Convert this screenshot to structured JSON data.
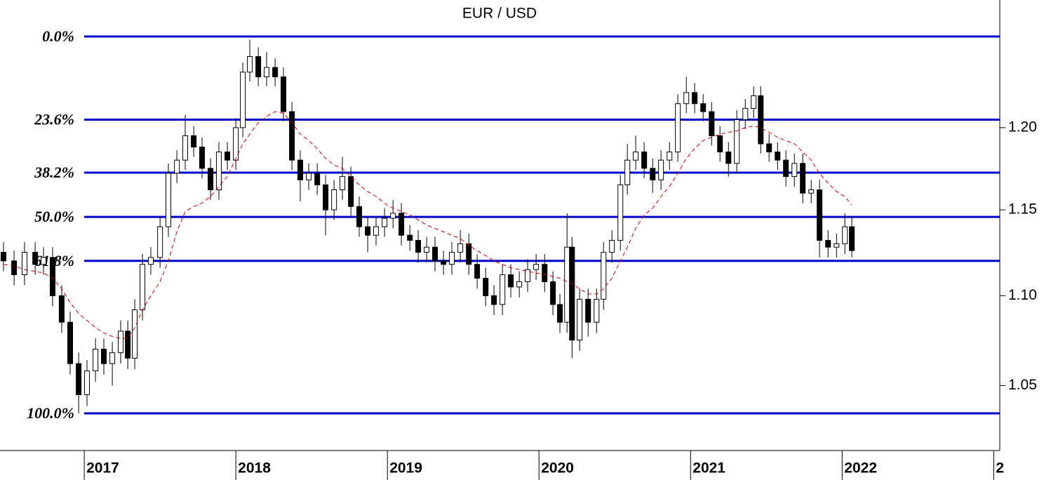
{
  "chart_data": {
    "type": "candlestick",
    "title": "EUR / USD",
    "log_scale": true,
    "ylim": [
      1.016,
      1.282
    ],
    "yticks": [
      1.05,
      {
        "value": 1.1,
        "label": "1.10"
      },
      1.15,
      {
        "value": 1.2,
        "label": "1.20"
      }
    ],
    "xlim": [
      2016.444,
      2023.04
    ],
    "xticks": [
      2017,
      2018,
      2019,
      2020,
      2021,
      2022,
      {
        "value": 2023,
        "label": "2"
      }
    ],
    "up_color": "#ffffff",
    "down_color": "#000000",
    "fib_color": "#0000cc",
    "fib_levels": [
      {
        "label": "0.0%",
        "value": 1.258
      },
      {
        "label": "23.6%",
        "value": 1.205
      },
      {
        "label": "38.2%",
        "value": 1.1724
      },
      {
        "label": "50.0%",
        "value": 1.1458
      },
      {
        "label": "61.8%",
        "value": 1.12
      },
      {
        "label": "100.0%",
        "value": 1.035
      }
    ],
    "x": [
      2016.467,
      2016.537,
      2016.606,
      2016.676,
      2016.731,
      2016.791,
      2016.851,
      2016.907,
      2016.963,
      2017.018,
      2017.074,
      2017.129,
      2017.185,
      2017.24,
      2017.287,
      2017.333,
      2017.384,
      2017.439,
      2017.5,
      2017.555,
      2017.611,
      2017.666,
      2017.722,
      2017.777,
      2017.833,
      2017.888,
      2017.944,
      2018.0,
      2018.046,
      2018.092,
      2018.148,
      2018.203,
      2018.259,
      2018.314,
      2018.37,
      2018.425,
      2018.481,
      2018.537,
      2018.592,
      2018.648,
      2018.703,
      2018.759,
      2018.814,
      2018.87,
      2018.925,
      2018.981,
      2019.037,
      2019.092,
      2019.148,
      2019.203,
      2019.259,
      2019.314,
      2019.37,
      2019.425,
      2019.481,
      2019.537,
      2019.592,
      2019.648,
      2019.703,
      2019.759,
      2019.814,
      2019.87,
      2019.925,
      2019.981,
      2020.037,
      2020.092,
      2020.138,
      2020.185,
      2020.218,
      2020.268,
      2020.324,
      2020.38,
      2020.426,
      2020.481,
      2020.537,
      2020.583,
      2020.638,
      2020.694,
      2020.75,
      2020.805,
      2020.861,
      2020.916,
      2020.972,
      2021.027,
      2021.083,
      2021.139,
      2021.194,
      2021.25,
      2021.305,
      2021.361,
      2021.416,
      2021.463,
      2021.518,
      2021.574,
      2021.629,
      2021.685,
      2021.74,
      2021.796,
      2021.851,
      2021.907,
      2021.963,
      2022.018,
      2022.064
    ],
    "open": [
      1.125,
      1.12,
      1.112,
      1.125,
      1.118,
      1.122,
      1.1,
      1.085,
      1.062,
      1.045,
      1.058,
      1.07,
      1.062,
      1.068,
      1.08,
      1.065,
      1.092,
      1.118,
      1.122,
      1.14,
      1.172,
      1.18,
      1.195,
      1.188,
      1.175,
      1.162,
      1.185,
      1.18,
      1.2,
      1.235,
      1.245,
      1.232,
      1.238,
      1.232,
      1.21,
      1.18,
      1.168,
      1.172,
      1.165,
      1.15,
      1.162,
      1.17,
      1.152,
      1.14,
      1.135,
      1.14,
      1.145,
      1.148,
      1.135,
      1.132,
      1.125,
      1.128,
      1.12,
      1.118,
      1.125,
      1.13,
      1.118,
      1.11,
      1.1,
      1.095,
      1.112,
      1.105,
      1.108,
      1.115,
      1.118,
      1.108,
      1.095,
      1.085,
      1.128,
      1.075,
      1.098,
      1.085,
      1.098,
      1.125,
      1.132,
      1.165,
      1.18,
      1.185,
      1.175,
      1.168,
      1.18,
      1.185,
      1.215,
      1.222,
      1.215,
      1.21,
      1.195,
      1.185,
      1.178,
      1.205,
      1.212,
      1.22,
      1.19,
      1.185,
      1.18,
      1.17,
      1.178,
      1.16,
      1.162,
      1.132,
      1.128,
      1.13,
      1.14
    ],
    "high": [
      1.131,
      1.126,
      1.131,
      1.131,
      1.128,
      1.128,
      1.106,
      1.091,
      1.068,
      1.064,
      1.076,
      1.076,
      1.074,
      1.086,
      1.086,
      1.098,
      1.124,
      1.128,
      1.146,
      1.178,
      1.186,
      1.208,
      1.201,
      1.194,
      1.181,
      1.191,
      1.191,
      1.206,
      1.241,
      1.256,
      1.251,
      1.248,
      1.244,
      1.238,
      1.216,
      1.186,
      1.178,
      1.178,
      1.171,
      1.168,
      1.182,
      1.176,
      1.158,
      1.146,
      1.146,
      1.151,
      1.156,
      1.154,
      1.141,
      1.138,
      1.134,
      1.134,
      1.126,
      1.131,
      1.138,
      1.136,
      1.124,
      1.116,
      1.106,
      1.118,
      1.118,
      1.114,
      1.121,
      1.124,
      1.124,
      1.114,
      1.101,
      1.148,
      1.134,
      1.104,
      1.104,
      1.104,
      1.131,
      1.138,
      1.171,
      1.19,
      1.195,
      1.191,
      1.181,
      1.186,
      1.191,
      1.221,
      1.232,
      1.228,
      1.221,
      1.216,
      1.201,
      1.191,
      1.211,
      1.218,
      1.226,
      1.226,
      1.196,
      1.191,
      1.186,
      1.184,
      1.184,
      1.168,
      1.168,
      1.138,
      1.136,
      1.148,
      1.146
    ],
    "low": [
      1.114,
      1.106,
      1.106,
      1.112,
      1.112,
      1.094,
      1.079,
      1.056,
      1.035,
      1.039,
      1.052,
      1.056,
      1.05,
      1.062,
      1.059,
      1.059,
      1.086,
      1.112,
      1.116,
      1.134,
      1.166,
      1.174,
      1.182,
      1.169,
      1.156,
      1.156,
      1.174,
      1.174,
      1.194,
      1.229,
      1.226,
      1.226,
      1.226,
      1.204,
      1.174,
      1.155,
      1.162,
      1.159,
      1.135,
      1.144,
      1.156,
      1.146,
      1.134,
      1.125,
      1.129,
      1.134,
      1.139,
      1.129,
      1.126,
      1.119,
      1.119,
      1.114,
      1.112,
      1.112,
      1.119,
      1.112,
      1.104,
      1.094,
      1.089,
      1.089,
      1.099,
      1.099,
      1.102,
      1.109,
      1.102,
      1.089,
      1.079,
      1.079,
      1.065,
      1.069,
      1.077,
      1.079,
      1.092,
      1.119,
      1.126,
      1.159,
      1.174,
      1.169,
      1.16,
      1.162,
      1.174,
      1.179,
      1.209,
      1.209,
      1.204,
      1.189,
      1.179,
      1.17,
      1.172,
      1.199,
      1.206,
      1.184,
      1.179,
      1.174,
      1.164,
      1.164,
      1.154,
      1.154,
      1.122,
      1.122,
      1.122,
      1.124,
      1.122
    ],
    "close": [
      1.12,
      1.112,
      1.125,
      1.118,
      1.122,
      1.1,
      1.085,
      1.062,
      1.045,
      1.058,
      1.07,
      1.062,
      1.068,
      1.08,
      1.065,
      1.092,
      1.118,
      1.122,
      1.14,
      1.172,
      1.18,
      1.195,
      1.188,
      1.175,
      1.162,
      1.185,
      1.18,
      1.2,
      1.235,
      1.245,
      1.232,
      1.238,
      1.232,
      1.21,
      1.18,
      1.168,
      1.172,
      1.165,
      1.15,
      1.162,
      1.17,
      1.152,
      1.14,
      1.135,
      1.14,
      1.145,
      1.148,
      1.135,
      1.132,
      1.125,
      1.128,
      1.12,
      1.118,
      1.125,
      1.13,
      1.118,
      1.11,
      1.1,
      1.095,
      1.112,
      1.105,
      1.108,
      1.115,
      1.118,
      1.108,
      1.095,
      1.085,
      1.128,
      1.075,
      1.098,
      1.085,
      1.098,
      1.125,
      1.132,
      1.165,
      1.18,
      1.185,
      1.175,
      1.168,
      1.18,
      1.185,
      1.215,
      1.222,
      1.215,
      1.21,
      1.195,
      1.185,
      1.178,
      1.205,
      1.212,
      1.22,
      1.19,
      1.185,
      1.18,
      1.17,
      1.178,
      1.16,
      1.162,
      1.132,
      1.128,
      1.13,
      1.14,
      1.126
    ],
    "moving_average": {
      "color": "#cc0000",
      "values": [
        1.118,
        1.117,
        1.115,
        1.114,
        1.113,
        1.11,
        1.104,
        1.096,
        1.09,
        1.086,
        1.082,
        1.079,
        1.077,
        1.076,
        1.076,
        1.082,
        1.092,
        1.1,
        1.108,
        1.12,
        1.137,
        1.149,
        1.152,
        1.154,
        1.158,
        1.164,
        1.17,
        1.181,
        1.19,
        1.196,
        1.203,
        1.207,
        1.21,
        1.209,
        1.203,
        1.196,
        1.192,
        1.187,
        1.181,
        1.177,
        1.175,
        1.17,
        1.165,
        1.161,
        1.158,
        1.154,
        1.151,
        1.149,
        1.147,
        1.144,
        1.141,
        1.139,
        1.137,
        1.135,
        1.133,
        1.129,
        1.126,
        1.123,
        1.12,
        1.118,
        1.116,
        1.115,
        1.114,
        1.113,
        1.112,
        1.111,
        1.11,
        1.108,
        1.107,
        1.104,
        1.101,
        1.101,
        1.104,
        1.11,
        1.12,
        1.128,
        1.139,
        1.147,
        1.151,
        1.158,
        1.164,
        1.172,
        1.181,
        1.187,
        1.192,
        1.194,
        1.196,
        1.197,
        1.198,
        1.2,
        1.201,
        1.2,
        1.197,
        1.194,
        1.192,
        1.19,
        1.185,
        1.18,
        1.172,
        1.166,
        1.161,
        1.158,
        1.153
      ]
    }
  }
}
